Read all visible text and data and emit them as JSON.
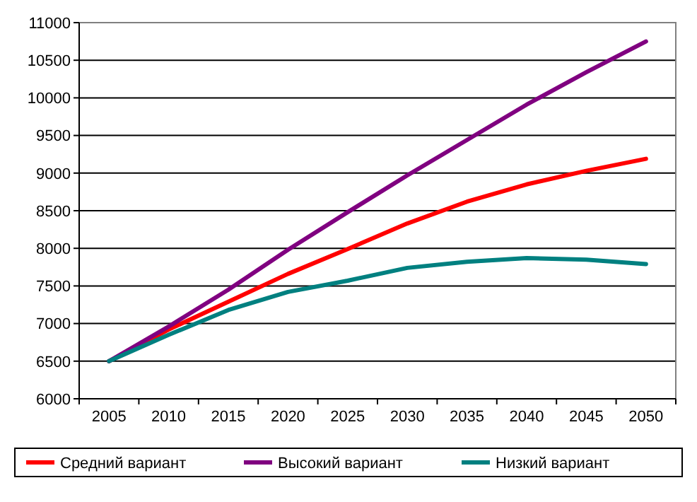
{
  "chart_data": {
    "type": "line",
    "x": [
      2005,
      2010,
      2015,
      2020,
      2025,
      2030,
      2035,
      2040,
      2045,
      2050
    ],
    "series": [
      {
        "name": "Средний вариант",
        "color": "#ff0000",
        "values": [
          6500,
          6920,
          7290,
          7660,
          7990,
          8330,
          8620,
          8850,
          9030,
          9190
        ]
      },
      {
        "name": "Высокий вариант",
        "color": "#800080",
        "values": [
          6500,
          6960,
          7450,
          7980,
          8480,
          8970,
          9440,
          9910,
          10340,
          10750
        ]
      },
      {
        "name": "Низкий вариант",
        "color": "#008080",
        "values": [
          6500,
          6850,
          7180,
          7420,
          7570,
          7740,
          7820,
          7870,
          7850,
          7790
        ]
      }
    ],
    "xlim": [
      2002.5,
      2052.5
    ],
    "xticks": [
      {
        "value": 2002.5,
        "label": null
      },
      2005,
      {
        "value": 2007.5,
        "label": null
      },
      2010,
      {
        "value": 2012.5,
        "label": null
      },
      2015,
      {
        "value": 2017.5,
        "label": null
      },
      2020,
      {
        "value": 2022.5,
        "label": null
      },
      2025,
      {
        "value": 2027.5,
        "label": null
      },
      2030,
      {
        "value": 2032.5,
        "label": null
      },
      2035,
      {
        "value": 2037.5,
        "label": null
      },
      2040,
      {
        "value": 2042.5,
        "label": null
      },
      2045,
      {
        "value": 2047.5,
        "label": null
      },
      2050,
      {
        "value": 2052.5,
        "label": null
      }
    ],
    "ylim": [
      6000,
      11000
    ],
    "yticks": [
      6000,
      6500,
      7000,
      7500,
      8000,
      8500,
      9000,
      9500,
      10000,
      10500,
      11000
    ],
    "grid": "y",
    "legend": "bottom",
    "marker": "none",
    "line_style": "solid"
  }
}
